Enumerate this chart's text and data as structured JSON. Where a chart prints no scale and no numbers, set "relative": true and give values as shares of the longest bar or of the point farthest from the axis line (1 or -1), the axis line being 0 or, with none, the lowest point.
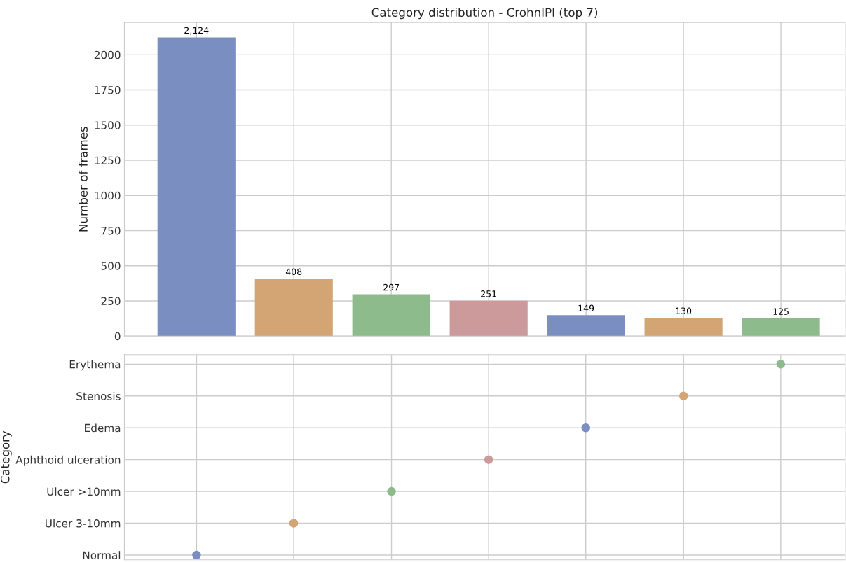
{
  "chart_data": [
    {
      "type": "bar",
      "title": "Category distribution - CrohnIPI (top 7)",
      "ylabel": "Number of frames",
      "categories": [
        null,
        null,
        null,
        null,
        null,
        null,
        null
      ],
      "values": [
        2124,
        408,
        297,
        251,
        149,
        130,
        125
      ],
      "value_labels": [
        "2,124",
        "408",
        "297",
        "251",
        "149",
        "130",
        "125"
      ],
      "colors": [
        "#7b8ec1",
        "#d3a574",
        "#8dbb8c",
        "#cc9a9a",
        "#7b8ec1",
        "#d3a574",
        "#8dbb8c"
      ],
      "ylim": [
        0,
        2230
      ],
      "yticks": [
        0,
        250,
        500,
        750,
        1000,
        1250,
        1500,
        1750,
        2000
      ],
      "grid": true,
      "tick_labels": "y"
    },
    {
      "type": "scatter",
      "ylabel": "Category",
      "orientation": "horizontal",
      "relative": true,
      "categories": [
        "Erythema",
        "Stenosis",
        "Edema",
        "Aphthoid ulceration",
        "Ulcer >10mm",
        "Ulcer 3-10mm",
        "Normal"
      ],
      "values": [
        1,
        0.852,
        0.703,
        0.555,
        0.407,
        0.258,
        0.11
      ],
      "colors": [
        "#8dbb8c",
        "#d3a574",
        "#7b8ec1",
        "#cc9a9a",
        "#8dbb8c",
        "#d3a574",
        "#7b8ec1"
      ],
      "marker": "circle",
      "grid": true,
      "tick_labels": "y"
    }
  ]
}
